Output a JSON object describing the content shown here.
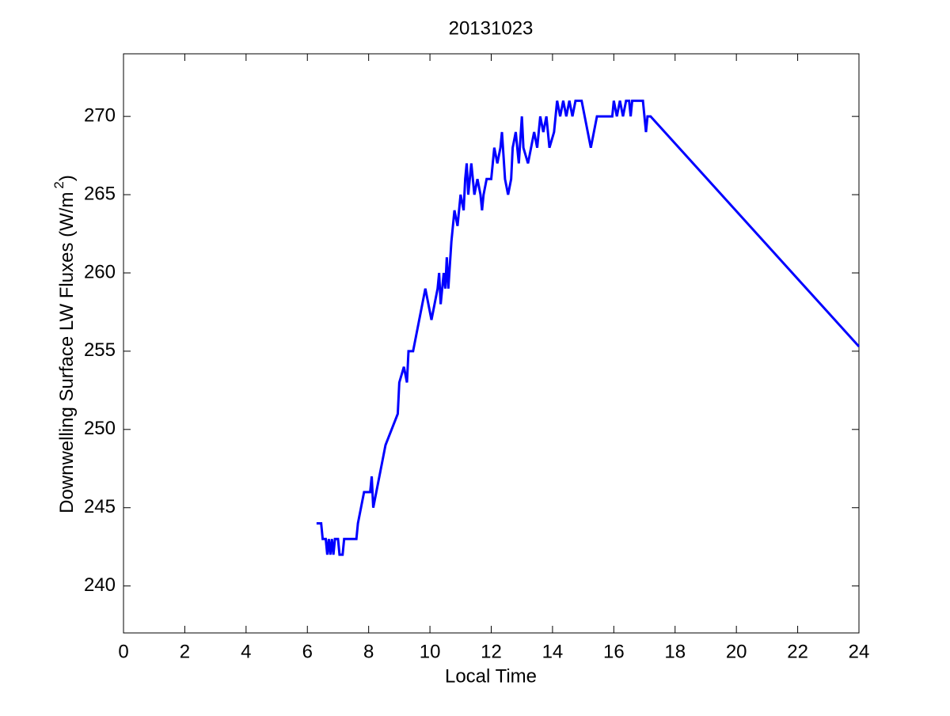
{
  "chart_data": {
    "type": "line",
    "title": "20131023",
    "xlabel": "Local Time",
    "ylabel": "Downwelling Surface LW Fluxes (W/m",
    "ylabel_sup": "2",
    "ylabel_end": ")",
    "xlim": [
      0,
      24
    ],
    "xticks": [
      0,
      2,
      4,
      6,
      8,
      10,
      12,
      14,
      16,
      18,
      20,
      22,
      24
    ],
    "ylim": [
      237,
      274
    ],
    "yticks": [
      240,
      245,
      250,
      255,
      260,
      265,
      270
    ],
    "grid": false,
    "series": [
      {
        "color": "#0000ff",
        "x": [
          6.3,
          6.45,
          6.5,
          6.6,
          6.65,
          6.7,
          6.75,
          6.8,
          6.85,
          6.9,
          7.0,
          7.05,
          7.15,
          7.2,
          7.6,
          7.65,
          7.75,
          7.85,
          8.05,
          8.1,
          8.15,
          8.25,
          8.35,
          8.45,
          8.55,
          8.75,
          8.95,
          9.0,
          9.15,
          9.25,
          9.3,
          9.45,
          9.55,
          9.65,
          9.75,
          9.85,
          9.95,
          10.05,
          10.15,
          10.25,
          10.3,
          10.35,
          10.45,
          10.5,
          10.55,
          10.6,
          10.7,
          10.8,
          10.9,
          11.0,
          11.1,
          11.15,
          11.2,
          11.25,
          11.3,
          11.35,
          11.45,
          11.55,
          11.65,
          11.7,
          11.75,
          11.85,
          12.0,
          12.05,
          12.1,
          12.2,
          12.3,
          12.35,
          12.45,
          12.55,
          12.65,
          12.7,
          12.8,
          12.9,
          13.0,
          13.05,
          13.2,
          13.3,
          13.4,
          13.5,
          13.6,
          13.7,
          13.8,
          13.9,
          14.05,
          14.15,
          14.25,
          14.35,
          14.45,
          14.55,
          14.65,
          14.75,
          14.95,
          15.05,
          15.15,
          15.25,
          15.35,
          15.45,
          15.95,
          16.0,
          16.1,
          16.2,
          16.3,
          16.4,
          16.5,
          16.55,
          16.6,
          16.95,
          17.0,
          17.05,
          17.1,
          17.2,
          24
        ],
        "values": [
          244,
          244,
          243,
          243,
          242,
          243,
          242,
          243,
          242,
          243,
          243,
          242,
          242,
          243,
          243,
          244,
          245,
          246,
          246,
          247,
          245,
          246,
          247,
          248,
          249,
          250,
          251,
          253,
          254,
          253,
          255,
          255,
          256,
          257,
          258,
          259,
          258,
          257,
          258,
          259,
          260,
          258,
          260,
          259,
          261,
          259,
          262,
          264,
          263,
          265,
          264,
          266,
          267,
          265,
          266,
          267,
          265,
          266,
          265,
          264,
          265,
          266,
          266,
          267,
          268,
          267,
          268,
          269,
          266,
          265,
          266,
          268,
          269,
          267,
          270,
          268,
          267,
          268,
          269,
          268,
          270,
          269,
          270,
          268,
          269,
          271,
          270,
          271,
          270,
          271,
          270,
          271,
          271,
          270,
          269,
          268,
          269,
          270,
          270,
          271,
          270,
          271,
          270,
          271,
          271,
          270,
          271,
          271,
          270,
          269,
          270,
          270,
          255.3
        ]
      }
    ]
  }
}
